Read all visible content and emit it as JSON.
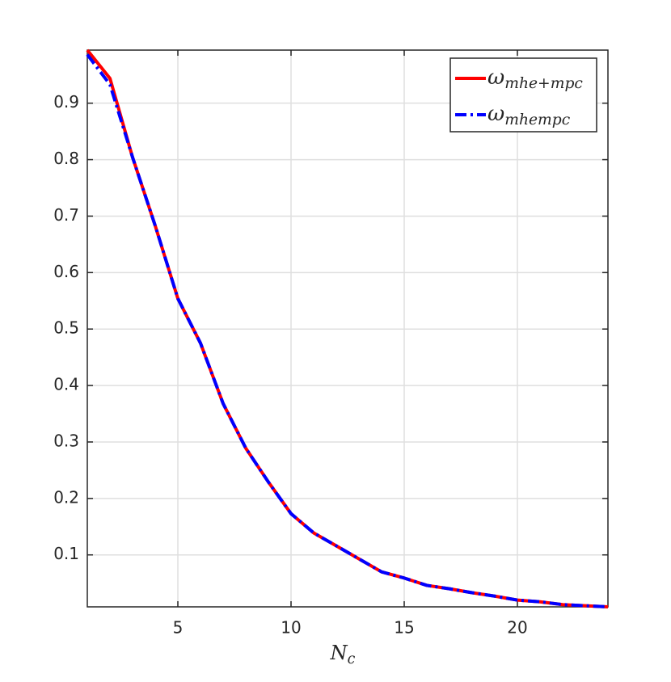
{
  "chart_data": {
    "type": "line",
    "x_label": "Nc",
    "x": [
      1,
      2,
      3,
      4,
      5,
      6,
      7,
      8,
      9,
      10,
      11,
      12,
      13,
      14,
      15,
      16,
      17,
      18,
      19,
      20,
      21,
      22,
      23,
      24
    ],
    "series": [
      {
        "name": "ωmhe+mpc",
        "color": "#ff0000",
        "dash": "solid",
        "values": [
          0.994,
          0.944,
          0.804,
          0.683,
          0.554,
          0.475,
          0.368,
          0.289,
          0.229,
          0.173,
          0.139,
          0.116,
          0.093,
          0.07,
          0.059,
          0.046,
          0.04,
          0.033,
          0.027,
          0.02,
          0.017,
          0.012,
          0.01,
          0.008
        ]
      },
      {
        "name": "ωmhempc",
        "color": "#0000ff",
        "dash": "dashdot",
        "values": [
          0.986,
          0.933,
          0.804,
          0.683,
          0.554,
          0.475,
          0.368,
          0.289,
          0.229,
          0.173,
          0.139,
          0.116,
          0.093,
          0.07,
          0.059,
          0.046,
          0.04,
          0.033,
          0.027,
          0.02,
          0.017,
          0.012,
          0.01,
          0.008
        ]
      }
    ],
    "xlim": [
      1,
      24
    ],
    "xticks": [
      5,
      10,
      15,
      20
    ],
    "ylim": [
      0.008,
      0.994
    ],
    "yticks": [
      0.1,
      0.2,
      0.3,
      0.4,
      0.5,
      0.6,
      0.7,
      0.8,
      0.9
    ],
    "grid": true,
    "legend": "top-right"
  }
}
